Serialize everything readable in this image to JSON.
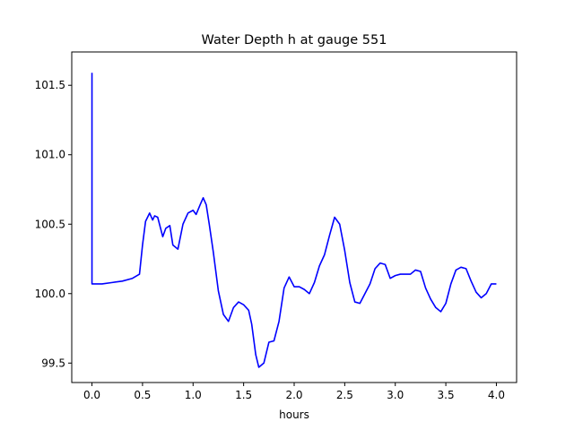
{
  "chart_data": {
    "type": "line",
    "title": "Water Depth h at gauge 551",
    "xlabel": "hours",
    "ylabel": "",
    "xlim": [
      -0.2,
      4.2
    ],
    "ylim": [
      99.36,
      101.74
    ],
    "grid": false,
    "line_color": "#0000ff",
    "xticks": [
      {
        "value": 0.0,
        "label": "0.0"
      },
      {
        "value": 0.5,
        "label": "0.5"
      },
      {
        "value": 1.0,
        "label": "1.0"
      },
      {
        "value": 1.5,
        "label": "1.5"
      },
      {
        "value": 2.0,
        "label": "2.0"
      },
      {
        "value": 2.5,
        "label": "2.5"
      },
      {
        "value": 3.0,
        "label": "3.0"
      },
      {
        "value": 3.5,
        "label": "3.5"
      },
      {
        "value": 4.0,
        "label": "4.0"
      }
    ],
    "yticks": [
      {
        "value": 99.5,
        "label": "99.5"
      },
      {
        "value": 100.0,
        "label": "100.0"
      },
      {
        "value": 100.5,
        "label": "100.5"
      },
      {
        "value": 101.0,
        "label": "101.0"
      },
      {
        "value": 101.5,
        "label": "101.5"
      }
    ],
    "series": [
      {
        "x": [
          0.0,
          0.0,
          0.0,
          0.1,
          0.2,
          0.3,
          0.4,
          0.47,
          0.5,
          0.53,
          0.57,
          0.6,
          0.62,
          0.65,
          0.7,
          0.73,
          0.77,
          0.8,
          0.85,
          0.9,
          0.95,
          1.0,
          1.03,
          1.07,
          1.1,
          1.13,
          1.16,
          1.2,
          1.25,
          1.3,
          1.35,
          1.4,
          1.45,
          1.5,
          1.55,
          1.58,
          1.62,
          1.65,
          1.7,
          1.75,
          1.8,
          1.85,
          1.9,
          1.95,
          2.0,
          2.05,
          2.1,
          2.15,
          2.2,
          2.25,
          2.3,
          2.35,
          2.4,
          2.45,
          2.5,
          2.55,
          2.6,
          2.65,
          2.7,
          2.75,
          2.8,
          2.85,
          2.9,
          2.95,
          3.0,
          3.05,
          3.1,
          3.15,
          3.2,
          3.25,
          3.3,
          3.35,
          3.4,
          3.45,
          3.5,
          3.55,
          3.6,
          3.65,
          3.7,
          3.75,
          3.8,
          3.85,
          3.9,
          3.95,
          4.0
        ],
        "y": [
          101.59,
          100.07,
          100.07,
          100.07,
          100.08,
          100.09,
          100.11,
          100.14,
          100.35,
          100.52,
          100.58,
          100.53,
          100.56,
          100.55,
          100.41,
          100.47,
          100.49,
          100.35,
          100.32,
          100.5,
          100.58,
          100.6,
          100.57,
          100.64,
          100.69,
          100.64,
          100.5,
          100.3,
          100.02,
          99.85,
          99.8,
          99.9,
          99.94,
          99.92,
          99.88,
          99.78,
          99.56,
          99.47,
          99.5,
          99.65,
          99.66,
          99.8,
          100.04,
          100.12,
          100.05,
          100.05,
          100.03,
          100.0,
          100.08,
          100.2,
          100.28,
          100.42,
          100.55,
          100.5,
          100.31,
          100.08,
          99.94,
          99.93,
          100.0,
          100.07,
          100.18,
          100.22,
          100.21,
          100.11,
          100.13,
          100.14,
          100.14,
          100.14,
          100.17,
          100.16,
          100.04,
          99.96,
          99.9,
          99.87,
          99.93,
          100.07,
          100.17,
          100.19,
          100.18,
          100.09,
          100.01,
          99.97,
          100.0,
          100.07,
          100.07
        ]
      }
    ]
  }
}
